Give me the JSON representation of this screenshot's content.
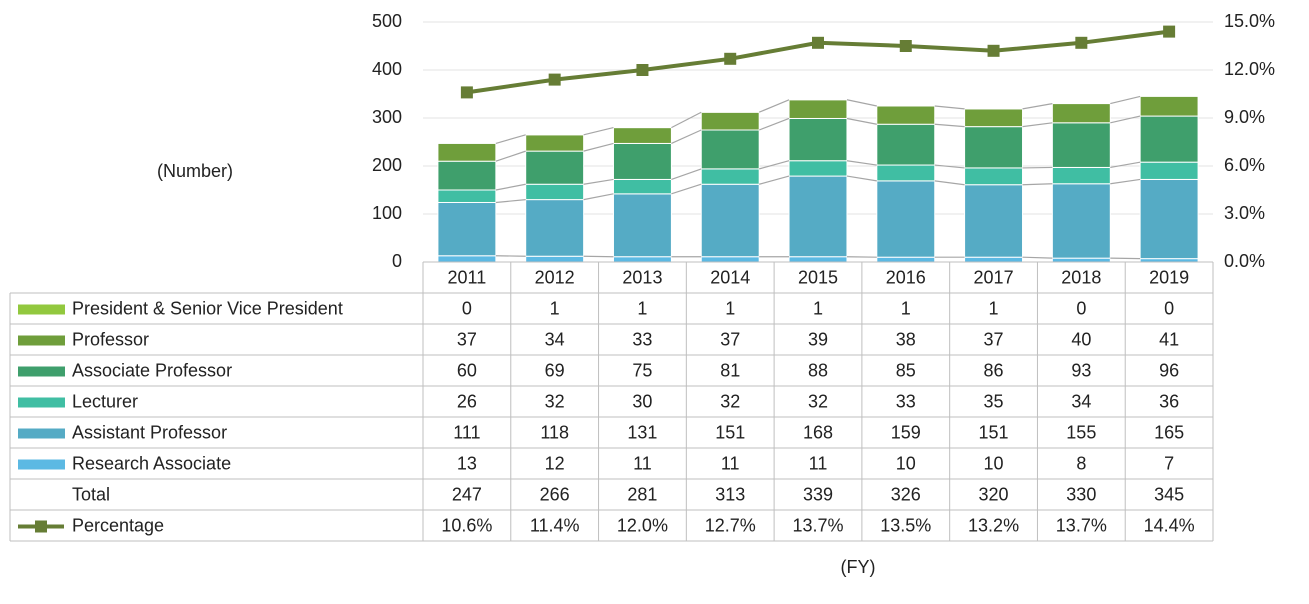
{
  "chart_data": {
    "type": "bar",
    "stacked": true,
    "categories": [
      "2011",
      "2012",
      "2013",
      "2014",
      "2015",
      "2016",
      "2017",
      "2018",
      "2019"
    ],
    "series": [
      {
        "name": "President & Senior Vice President",
        "color": "#92c83e",
        "values": [
          0,
          1,
          1,
          1,
          1,
          1,
          1,
          0,
          0
        ]
      },
      {
        "name": "Professor",
        "color": "#6f9e3b",
        "values": [
          37,
          34,
          33,
          37,
          39,
          38,
          37,
          40,
          41
        ]
      },
      {
        "name": "Associate Professor",
        "color": "#3f9f6c",
        "values": [
          60,
          69,
          75,
          81,
          88,
          85,
          86,
          93,
          96
        ]
      },
      {
        "name": "Lecturer",
        "color": "#40bea3",
        "values": [
          26,
          32,
          30,
          32,
          32,
          33,
          35,
          34,
          36
        ]
      },
      {
        "name": "Assistant Professor",
        "color": "#55abc5",
        "values": [
          111,
          118,
          131,
          151,
          168,
          159,
          151,
          155,
          165
        ]
      },
      {
        "name": "Research Associate",
        "color": "#5cb9e3",
        "values": [
          13,
          12,
          11,
          11,
          11,
          10,
          10,
          8,
          7
        ]
      },
      {
        "name": "Percentage",
        "color": "#667d35",
        "type": "line",
        "axis": "y2",
        "values": [
          10.6,
          11.4,
          12.0,
          12.7,
          13.7,
          13.5,
          13.2,
          13.7,
          14.4
        ],
        "value_labels": [
          "10.6%",
          "11.4%",
          "12.0%",
          "12.7%",
          "13.7%",
          "13.5%",
          "13.2%",
          "13.7%",
          "14.4%"
        ]
      }
    ],
    "total_label": "Total",
    "totals": [
      247,
      266,
      281,
      313,
      339,
      326,
      320,
      330,
      345
    ],
    "ylabel": "(Number)",
    "xlabel": "(FY)",
    "ylim": [
      0,
      500
    ],
    "yticks": [
      0,
      100,
      200,
      300,
      400,
      500
    ],
    "y2lim": [
      0,
      15
    ],
    "y2ticks": [
      {
        "value": 0,
        "label": "0.0%"
      },
      {
        "value": 3,
        "label": "3.0%"
      },
      {
        "value": 6,
        "label": "6.0%"
      },
      {
        "value": 9,
        "label": "9.0%"
      },
      {
        "value": 12,
        "label": "12.0%"
      },
      {
        "value": 15,
        "label": "15.0%"
      }
    ],
    "grid": true
  }
}
